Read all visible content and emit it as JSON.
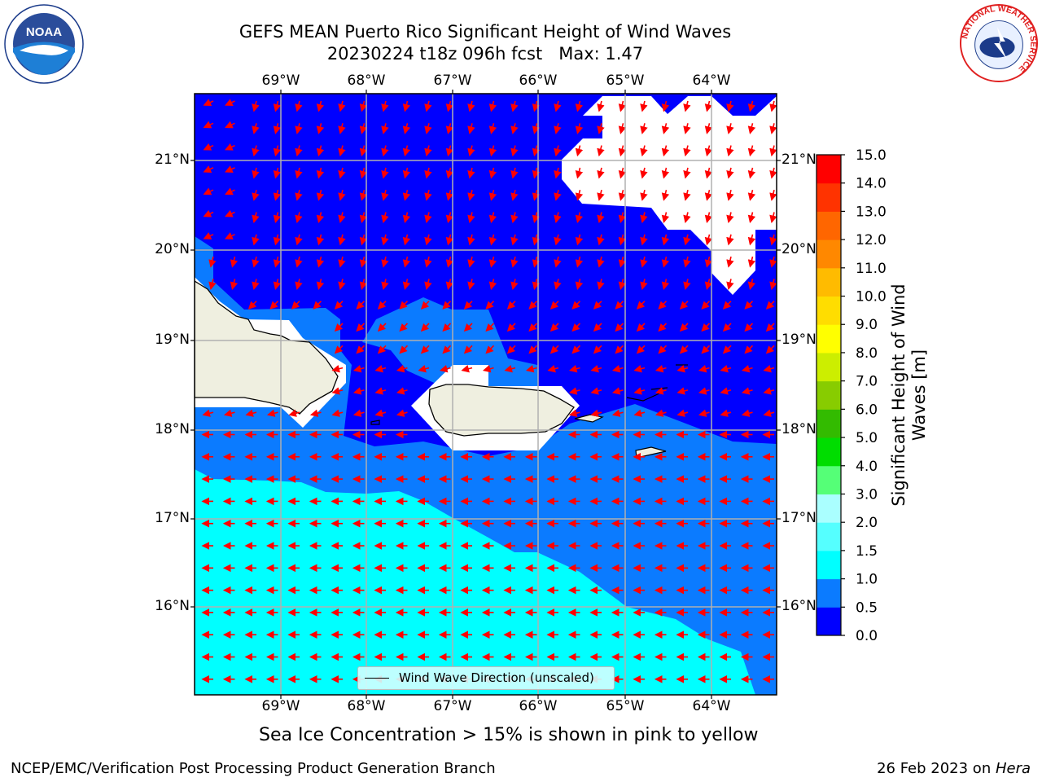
{
  "title_line1": "GEFS MEAN Puerto Rico Significant Height of Wind Waves",
  "title_line2": "20230224 t18z 096h fcst   Max: 1.47",
  "subcaption": "Sea Ice Concentration > 15% is shown in pink to yellow",
  "footer_left": "NCEP/EMC/Verification Post Processing Product Generation Branch",
  "footer_right_date": "26 Feb 2023 on ",
  "footer_right_host": "Hera",
  "legend_label": "Wind Wave Direction (unscaled)",
  "colorbar_label": "Significant Height of Wind Waves [m]",
  "colorbar_ticks": [
    "0.0",
    "0.5",
    "1.0",
    "1.5",
    "2.0",
    "3.0",
    "4.0",
    "5.0",
    "6.0",
    "7.0",
    "8.0",
    "9.0",
    "10.0",
    "11.0",
    "12.0",
    "13.0",
    "14.0",
    "15.0"
  ],
  "colorbar_colors": [
    "#0000ff",
    "#0b7bff",
    "#00ffff",
    "#55ffff",
    "#aaffff",
    "#55ff77",
    "#00dd00",
    "#33bb00",
    "#88cc00",
    "#ccee00",
    "#ffff00",
    "#ffdd00",
    "#ffbb00",
    "#ff8800",
    "#ff6600",
    "#ff3300",
    "#ff0000"
  ],
  "lon_labels": [
    "69°W",
    "68°W",
    "67°W",
    "66°W",
    "65°W",
    "64°W"
  ],
  "lat_labels": [
    "21°N",
    "20°N",
    "19°N",
    "18°N",
    "17°N",
    "16°N"
  ],
  "logos": {
    "left": "noaa-logo",
    "right": "nws-logo"
  },
  "logo_text": {
    "noaa": "NOAA",
    "nws_ring": "NATIONAL WEATHER SERVICE"
  },
  "colors": {
    "land": "#efefe0",
    "ice_mask": "#ffffff",
    "arrow": "#ff0000",
    "grid": "#b0b0b0"
  }
}
